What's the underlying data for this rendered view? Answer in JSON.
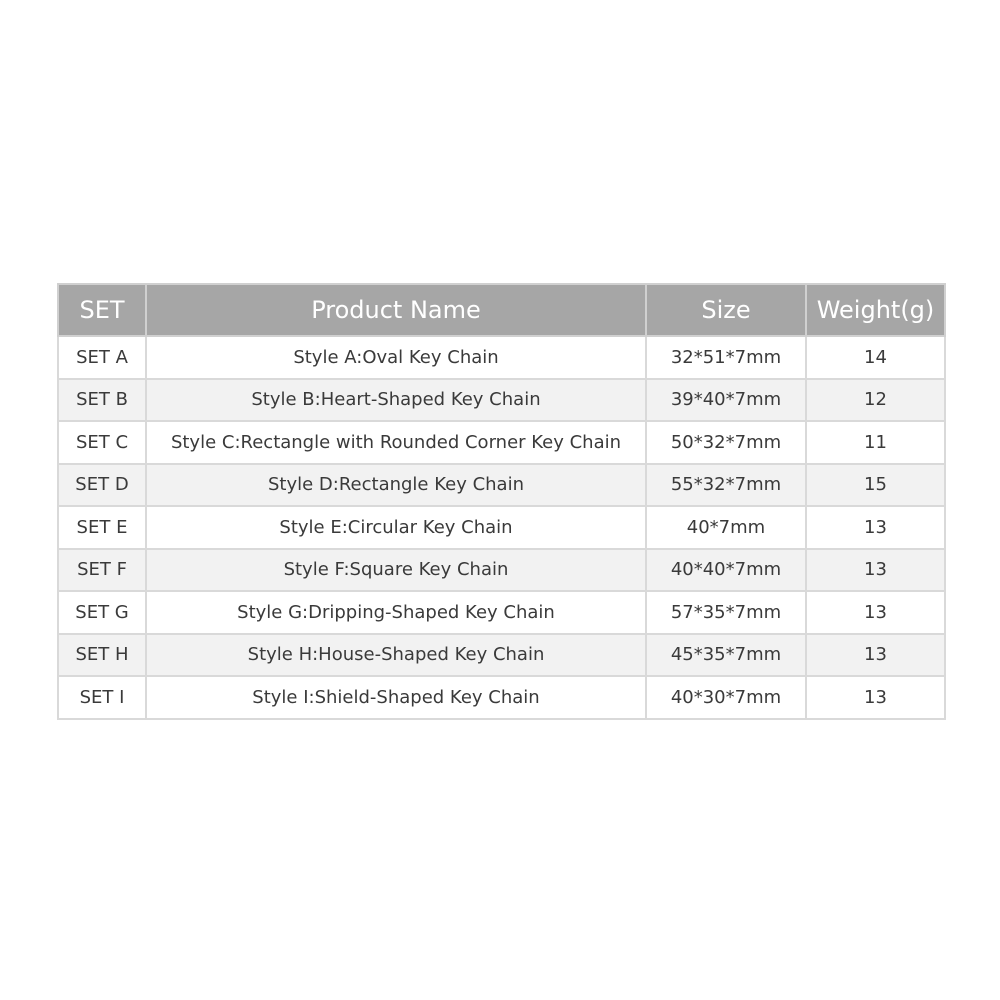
{
  "table": {
    "headers": [
      "SET",
      "Product Name",
      "Size",
      "Weight(g)"
    ],
    "rows": [
      [
        "SET A",
        "Style A:Oval Key Chain",
        "32*51*7mm",
        "14"
      ],
      [
        "SET B",
        "Style B:Heart-Shaped Key Chain",
        "39*40*7mm",
        "12"
      ],
      [
        "SET C",
        "Style C:Rectangle with Rounded Corner Key Chain",
        "50*32*7mm",
        "11"
      ],
      [
        "SET D",
        "Style D:Rectangle Key Chain",
        "55*32*7mm",
        "15"
      ],
      [
        "SET E",
        "Style E:Circular Key Chain",
        "40*7mm",
        "13"
      ],
      [
        "SET F",
        "Style F:Square Key Chain",
        "40*40*7mm",
        "13"
      ],
      [
        "SET G",
        "Style G:Dripping-Shaped Key Chain",
        "57*35*7mm",
        "13"
      ],
      [
        "SET H",
        "Style H:House-Shaped Key Chain",
        "45*35*7mm",
        "13"
      ],
      [
        "SET I",
        "Style I:Shield-Shaped Key Chain",
        "40*30*7mm",
        "13"
      ]
    ]
  },
  "colors": {
    "header_bg": "#a6a6a6",
    "border": "#d9d9d9",
    "alt_row": "#f2f2f2"
  }
}
